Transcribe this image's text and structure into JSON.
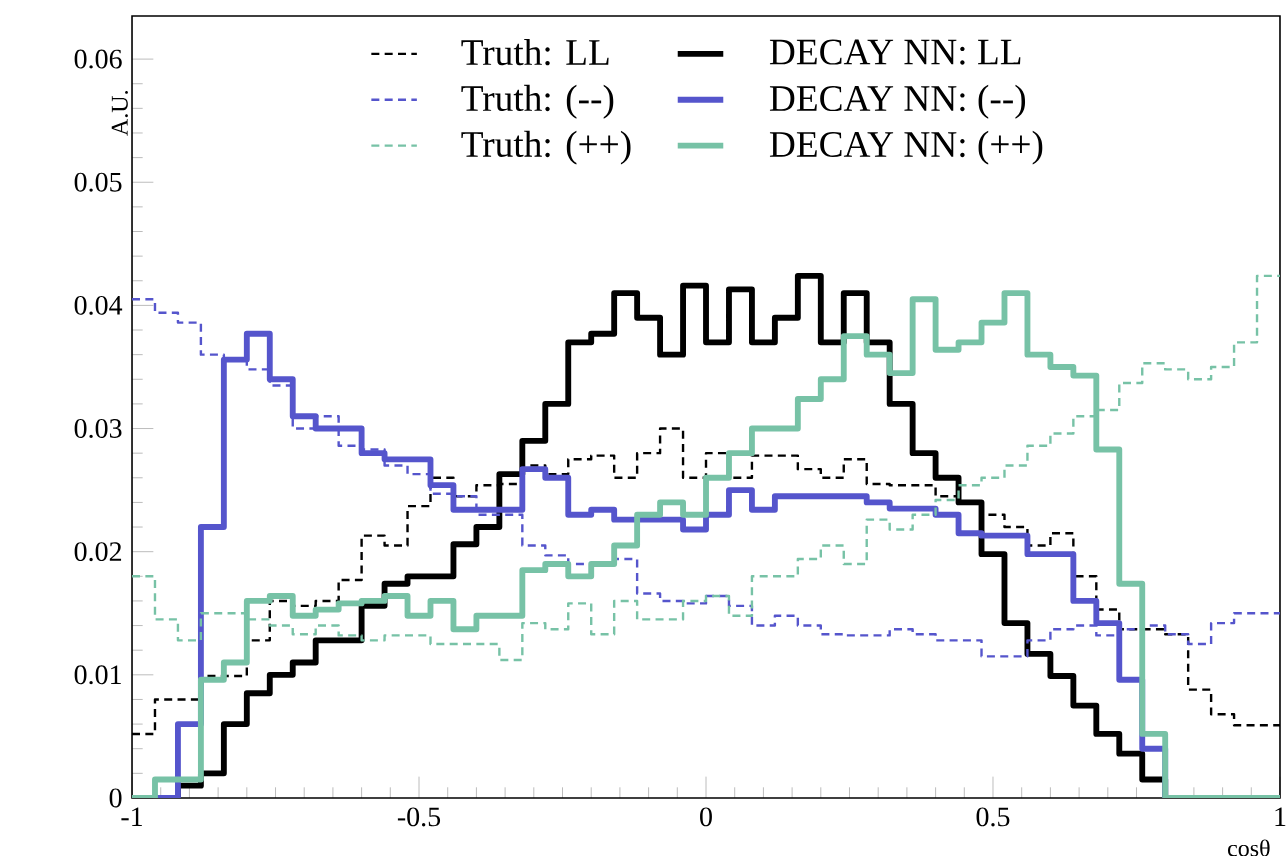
{
  "chart_data": {
    "type": "histogram",
    "xlabel": "cosθ",
    "ylabel": "A.U.",
    "bins": [
      -1,
      -0.96,
      -0.92,
      -0.88,
      -0.84,
      -0.8,
      -0.76,
      -0.72,
      -0.68,
      -0.64,
      -0.6,
      -0.56,
      -0.52,
      -0.48,
      -0.44,
      -0.4,
      -0.36,
      -0.32,
      -0.28,
      -0.24,
      -0.2,
      -0.16,
      -0.12,
      -0.08,
      -0.04,
      0,
      0.04,
      0.08,
      0.12,
      0.16,
      0.2,
      0.24,
      0.28,
      0.32,
      0.36,
      0.4,
      0.44,
      0.48,
      0.52,
      0.56,
      0.6,
      0.64,
      0.68,
      0.72,
      0.76,
      0.8,
      0.84,
      0.88,
      0.92,
      0.96,
      1
    ],
    "series": [
      {
        "name": "Truth: LL",
        "color": "#000000",
        "line_style": "dashed",
        "values": [
          0.0052,
          0.008,
          0.008,
          0.0099,
          0.0099,
          0.0128,
          0.016,
          0.0156,
          0.016,
          0.0177,
          0.0213,
          0.0205,
          0.0237,
          0.026,
          0.0245,
          0.0254,
          0.0255,
          0.027,
          0.0263,
          0.0275,
          0.0278,
          0.026,
          0.028,
          0.03,
          0.026,
          0.028,
          0.026,
          0.0278,
          0.0278,
          0.0267,
          0.026,
          0.0275,
          0.0255,
          0.0254,
          0.0254,
          0.0245,
          0.024,
          0.023,
          0.022,
          0.0205,
          0.0215,
          0.018,
          0.0153,
          0.0137,
          0.0137,
          0.0133,
          0.0088,
          0.0068,
          0.0059,
          0.0059
        ]
      },
      {
        "name": "DECAY NN: LL",
        "color": "#000000",
        "line_style": "solid",
        "values": [
          0,
          0,
          0.001,
          0.002,
          0.006,
          0.0085,
          0.01,
          0.011,
          0.0128,
          0.0128,
          0.0156,
          0.0174,
          0.018,
          0.018,
          0.0206,
          0.022,
          0.0263,
          0.029,
          0.032,
          0.037,
          0.0377,
          0.041,
          0.039,
          0.036,
          0.0416,
          0.037,
          0.0413,
          0.037,
          0.039,
          0.0424,
          0.037,
          0.041,
          0.037,
          0.032,
          0.028,
          0.026,
          0.024,
          0.0198,
          0.0142,
          0.0117,
          0.0099,
          0.0075,
          0.0052,
          0.0036,
          0.0015,
          0,
          0,
          0,
          0,
          0
        ]
      },
      {
        "name": "Truth: (--)",
        "color": "#5555cc",
        "line_style": "dashed",
        "values": [
          0.0405,
          0.0394,
          0.0386,
          0.036,
          0.0356,
          0.0348,
          0.0335,
          0.03,
          0.031,
          0.0286,
          0.0283,
          0.027,
          0.0263,
          0.0247,
          0.0245,
          0.023,
          0.023,
          0.0205,
          0.0197,
          0.019,
          0.019,
          0.0194,
          0.0166,
          0.016,
          0.0158,
          0.0164,
          0.0156,
          0.014,
          0.0148,
          0.014,
          0.0133,
          0.0132,
          0.0132,
          0.0137,
          0.0133,
          0.0128,
          0.0128,
          0.0115,
          0.0115,
          0.0128,
          0.0137,
          0.014,
          0.0132,
          0.0137,
          0.014,
          0.0133,
          0.0125,
          0.0142,
          0.015,
          0.015
        ]
      },
      {
        "name": "DECAY NN: (--)",
        "color": "#5555cc",
        "line_style": "solid",
        "values": [
          0,
          0,
          0.006,
          0.022,
          0.0356,
          0.0377,
          0.034,
          0.031,
          0.03,
          0.03,
          0.028,
          0.0275,
          0.0275,
          0.0254,
          0.0234,
          0.0234,
          0.0234,
          0.0267,
          0.026,
          0.023,
          0.0234,
          0.0226,
          0.0226,
          0.0226,
          0.0218,
          0.023,
          0.025,
          0.0234,
          0.0245,
          0.0245,
          0.0245,
          0.0245,
          0.024,
          0.0235,
          0.0235,
          0.023,
          0.0215,
          0.0213,
          0.0213,
          0.0198,
          0.0198,
          0.016,
          0.0142,
          0.0096,
          0.004,
          0,
          0,
          0,
          0,
          0
        ]
      },
      {
        "name": "Truth: (++)",
        "color": "#77c2a6",
        "line_style": "dashed",
        "values": [
          0.018,
          0.0145,
          0.0128,
          0.015,
          0.015,
          0.0145,
          0.014,
          0.0133,
          0.014,
          0.0132,
          0.0128,
          0.0132,
          0.0132,
          0.0125,
          0.0125,
          0.0125,
          0.0112,
          0.0142,
          0.0137,
          0.0158,
          0.0133,
          0.016,
          0.0145,
          0.0145,
          0.016,
          0.0164,
          0.0148,
          0.018,
          0.018,
          0.0194,
          0.0205,
          0.019,
          0.0226,
          0.0218,
          0.023,
          0.0242,
          0.0254,
          0.026,
          0.027,
          0.0286,
          0.0296,
          0.031,
          0.0315,
          0.0337,
          0.0353,
          0.0348,
          0.034,
          0.035,
          0.037,
          0.0424
        ]
      },
      {
        "name": "DECAY NN: (++)",
        "color": "#77c2a6",
        "line_style": "solid",
        "values": [
          0,
          0.0015,
          0.0015,
          0.0096,
          0.011,
          0.016,
          0.0164,
          0.0148,
          0.0153,
          0.0158,
          0.016,
          0.0164,
          0.0148,
          0.016,
          0.0137,
          0.0148,
          0.0148,
          0.0185,
          0.019,
          0.018,
          0.019,
          0.0205,
          0.023,
          0.024,
          0.023,
          0.026,
          0.028,
          0.03,
          0.03,
          0.0324,
          0.034,
          0.0375,
          0.036,
          0.0345,
          0.0405,
          0.0364,
          0.037,
          0.0386,
          0.041,
          0.036,
          0.035,
          0.0343,
          0.0283,
          0.0174,
          0.0052,
          0,
          0,
          0,
          0,
          0
        ]
      }
    ],
    "xlim": [
      -1,
      1
    ],
    "ylim": [
      0,
      0.0635
    ],
    "xticks": [
      -1,
      -0.5,
      0,
      0.5,
      1
    ],
    "yticks": [
      0,
      0.01,
      0.02,
      0.03,
      0.04,
      0.05,
      0.06
    ],
    "legend": "top"
  }
}
